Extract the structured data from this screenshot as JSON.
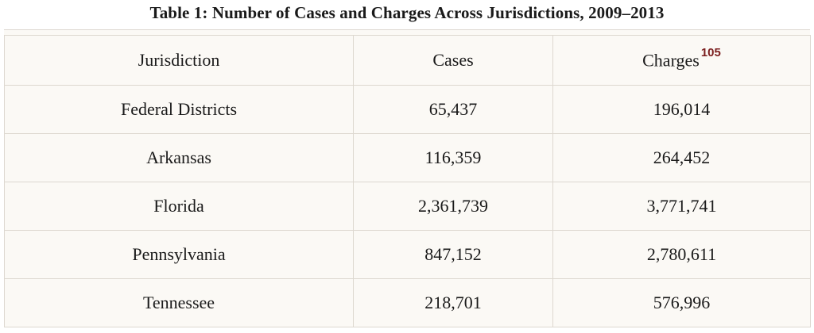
{
  "title": "Table 1: Number of Cases and Charges Across Jurisdictions, 2009–2013",
  "table": {
    "header": [
      "Jurisdiction",
      "Cases",
      "Charges"
    ],
    "header_footnote": "105",
    "rows": [
      [
        "Federal Districts",
        "65,437",
        "196,014"
      ],
      [
        "Arkansas",
        "116,359",
        "264,452"
      ],
      [
        "Florida",
        "2,361,739",
        "3,771,741"
      ],
      [
        "Pennsylvania",
        "847,152",
        "2,780,611"
      ],
      [
        "Tennessee",
        "218,701",
        "576,996"
      ]
    ]
  }
}
